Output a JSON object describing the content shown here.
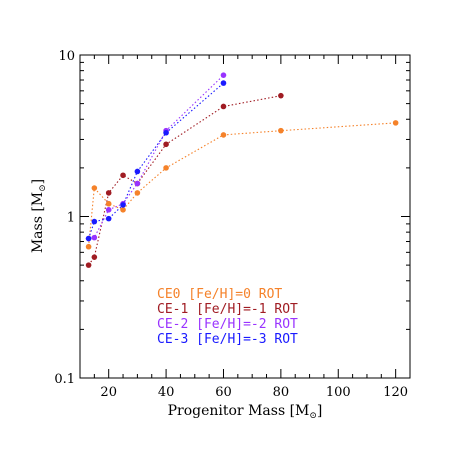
{
  "chart_data": {
    "type": "line",
    "xlabel": "Progenitor Mass [M",
    "ylabel": "Mass [M",
    "xlim": [
      10,
      125
    ],
    "ylim": [
      0.1,
      10
    ],
    "yscale": "log",
    "x_ticks": [
      20,
      40,
      60,
      80,
      100,
      120
    ],
    "y_ticks": [
      0.1,
      1,
      10
    ],
    "y_tick_labels": [
      "0.1",
      "1",
      "10"
    ],
    "legend_placement": "bottom-center",
    "series": [
      {
        "name": "CE0 [Fe/H]=0 ROT",
        "color": "#f5822a",
        "x": [
          13,
          15,
          20,
          25,
          30,
          40,
          60,
          80,
          120
        ],
        "y": [
          0.65,
          1.5,
          1.2,
          1.1,
          1.4,
          2.0,
          3.2,
          3.4,
          3.8
        ]
      },
      {
        "name": "CE-1 [Fe/H]=-1 ROT",
        "color": "#a01c23",
        "x": [
          13,
          15,
          20,
          25,
          30,
          40,
          60,
          80
        ],
        "y": [
          0.5,
          0.56,
          1.4,
          1.8,
          1.6,
          2.8,
          4.8,
          5.6
        ]
      },
      {
        "name": "CE-2 [Fe/H]=-2 ROT",
        "color": "#9933ff",
        "x": [
          13,
          15,
          20,
          25,
          30,
          40,
          60
        ],
        "y": [
          0.73,
          0.74,
          1.1,
          1.2,
          1.6,
          3.4,
          7.5
        ]
      },
      {
        "name": "CE-3 [Fe/H]=-3 ROT",
        "color": "#1a1aff",
        "x": [
          13,
          15,
          20,
          25,
          30,
          40,
          60
        ],
        "y": [
          0.73,
          0.93,
          0.97,
          1.18,
          1.9,
          3.3,
          6.7
        ]
      }
    ]
  }
}
